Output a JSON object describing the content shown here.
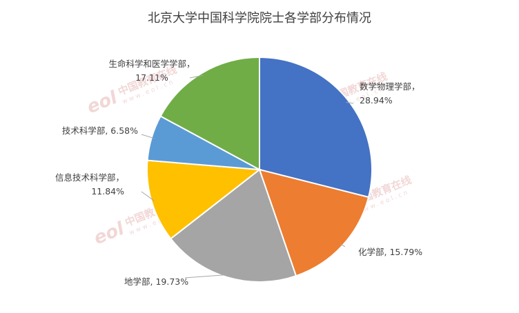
{
  "chart_data": {
    "type": "pie",
    "title": "北京大学中国科学院院士各学部分布情况",
    "slices": [
      {
        "name": "数学物理学部",
        "value": 28.94,
        "label": "28.94%",
        "color": "#4472C4"
      },
      {
        "name": "化学部",
        "value": 15.79,
        "label": "15.79%",
        "color": "#ED7D31"
      },
      {
        "name": "地学部",
        "value": 19.73,
        "label": "19.73%",
        "color": "#A5A5A5"
      },
      {
        "name": "信息技术科学部",
        "value": 11.84,
        "label": "11.84%",
        "color": "#FFC000"
      },
      {
        "name": "技术科学部",
        "value": 6.58,
        "label": "6.58%",
        "color": "#5B9BD5"
      },
      {
        "name": "生命科学和医学学部",
        "value": 17.11,
        "label": "17.11%",
        "color": "#70AD47"
      }
    ],
    "start_angle": "12 o'clock",
    "direction": "clockwise",
    "legend": "none"
  },
  "watermark": {
    "logo": "eol",
    "text": "中国教育在线",
    "url": "www.eol.cn"
  }
}
